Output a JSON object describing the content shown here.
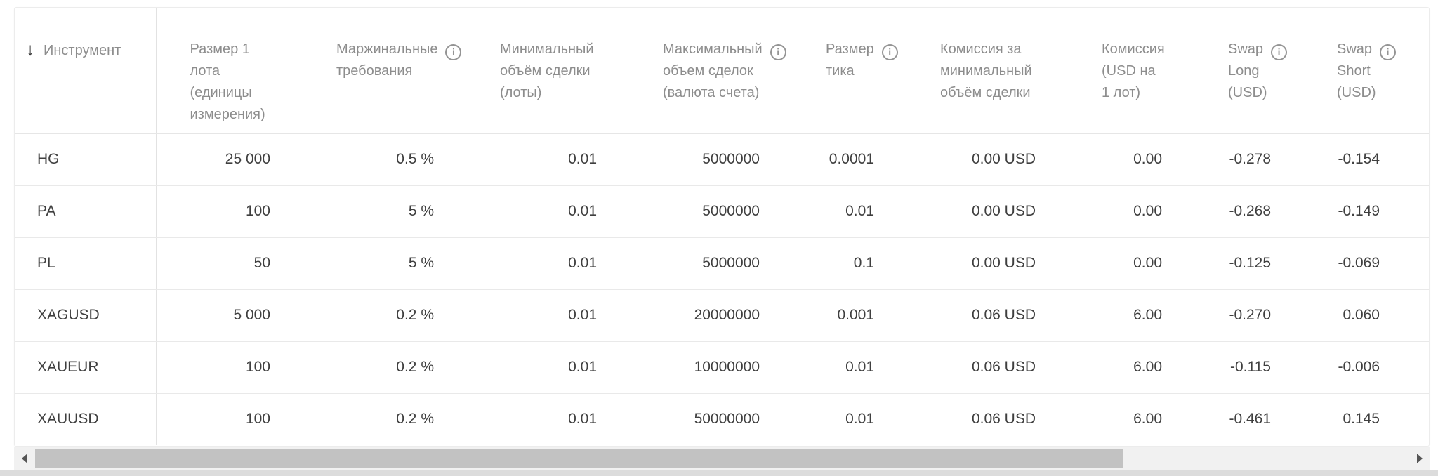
{
  "table": {
    "sort_icon": "↓",
    "icons": {
      "sort": "arrow-down",
      "info": "i"
    },
    "columns": [
      {
        "id": "instrument",
        "lines": [
          "Инструмент"
        ],
        "info": false
      },
      {
        "id": "lot-size",
        "lines": [
          "Размер 1",
          "лота",
          "(единицы",
          "измерения)"
        ],
        "info": false
      },
      {
        "id": "margin",
        "lines": [
          "Маржинальные",
          "требования"
        ],
        "info": true
      },
      {
        "id": "min-volume",
        "lines": [
          "Минимальный",
          "объём сделки",
          "(лоты)"
        ],
        "info": false
      },
      {
        "id": "max-volume",
        "lines": [
          "Максимальный",
          "объем сделок",
          "(валюта счета)"
        ],
        "info": true
      },
      {
        "id": "tick-size",
        "lines": [
          "Размер",
          "тика"
        ],
        "info": true
      },
      {
        "id": "commission-min",
        "lines": [
          "Комиссия за",
          "минимальный",
          "объём сделки"
        ],
        "info": false
      },
      {
        "id": "commission-lot",
        "lines": [
          "Комиссия",
          "(USD на",
          "1 лот)"
        ],
        "info": false
      },
      {
        "id": "swap-long",
        "lines": [
          "Swap",
          "Long",
          "(USD)"
        ],
        "info": true
      },
      {
        "id": "swap-short",
        "lines": [
          "Swap",
          "Short",
          "(USD)"
        ],
        "info": true
      }
    ],
    "rows": [
      {
        "instrument": "HG",
        "values": [
          "25 000",
          "0.5 %",
          "0.01",
          "5000000",
          "0.0001",
          "0.00 USD",
          "0.00",
          "-0.278",
          "-0.154"
        ]
      },
      {
        "instrument": "PA",
        "values": [
          "100",
          "5 %",
          "0.01",
          "5000000",
          "0.01",
          "0.00 USD",
          "0.00",
          "-0.268",
          "-0.149"
        ]
      },
      {
        "instrument": "PL",
        "values": [
          "50",
          "5 %",
          "0.01",
          "5000000",
          "0.1",
          "0.00 USD",
          "0.00",
          "-0.125",
          "-0.069"
        ]
      },
      {
        "instrument": "XAGUSD",
        "values": [
          "5 000",
          "0.2 %",
          "0.01",
          "20000000",
          "0.001",
          "0.06 USD",
          "6.00",
          "-0.270",
          "0.060"
        ]
      },
      {
        "instrument": "XAUEUR",
        "values": [
          "100",
          "0.2 %",
          "0.01",
          "10000000",
          "0.01",
          "0.06 USD",
          "6.00",
          "-0.115",
          "-0.006"
        ]
      },
      {
        "instrument": "XAUUSD",
        "values": [
          "100",
          "0.2 %",
          "0.01",
          "50000000",
          "0.01",
          "0.06 USD",
          "6.00",
          "-0.461",
          "0.145"
        ]
      }
    ]
  },
  "colors": {
    "header_text": "#8d8d8d",
    "body_text": "#3f3f3f",
    "row_border": "#e9e9e9",
    "frozen_column_divider": "#e2e2e2",
    "scrollbar_track": "#f1f1f1",
    "scrollbar_thumb": "#c2c2c2"
  }
}
